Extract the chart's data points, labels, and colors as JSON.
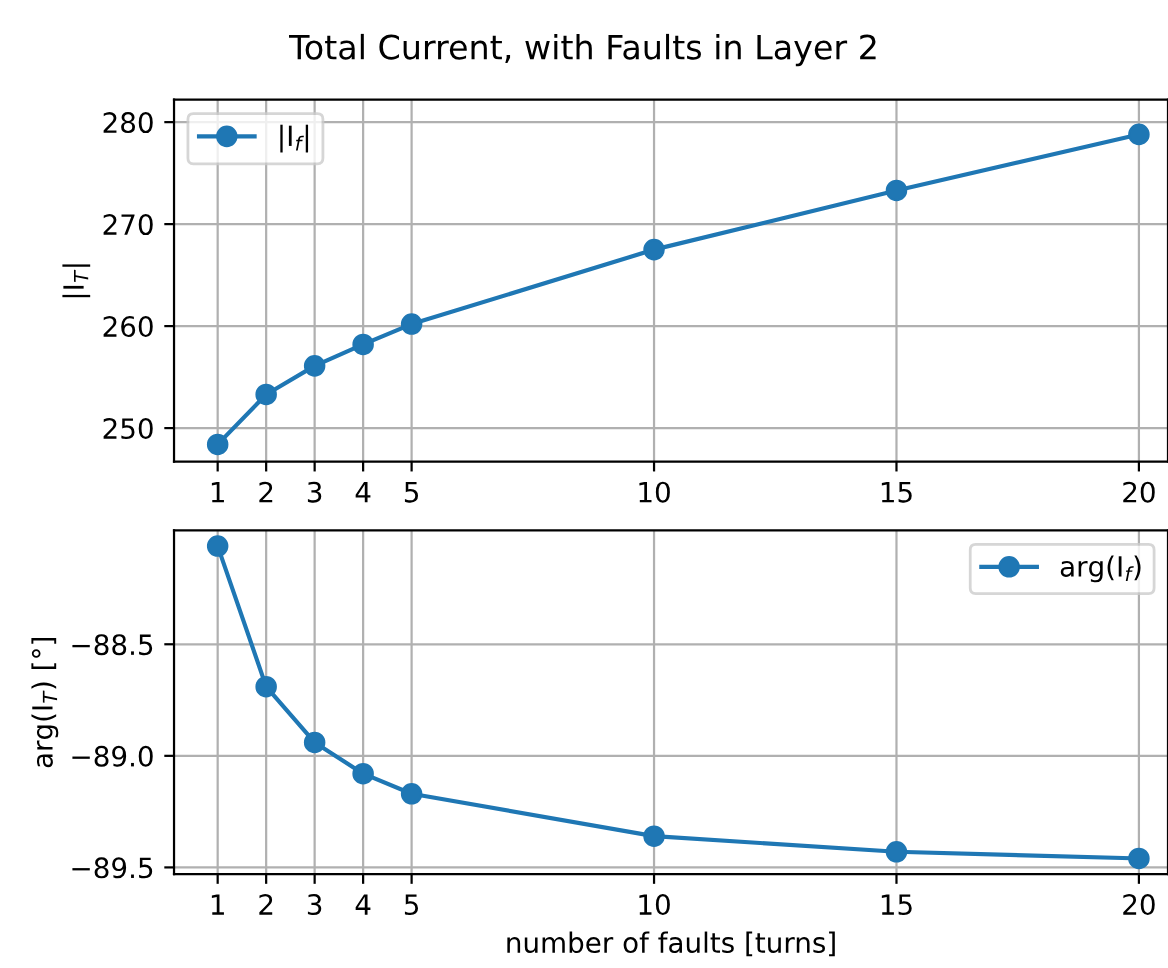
{
  "chart_data": [
    {
      "type": "line",
      "title": "Total Current, with Faults in Layer 2",
      "ylabel": "|I$_{T}$|",
      "x": [
        1,
        2,
        3,
        4,
        5,
        10,
        15,
        20
      ],
      "series": [
        {
          "name": "|I$_{f}$|",
          "color": "#1f77b4",
          "values": [
            248.4,
            253.3,
            256.1,
            258.2,
            260.2,
            267.5,
            273.3,
            278.8
          ]
        }
      ],
      "xlim": [
        0.1,
        20.6
      ],
      "xticks": [
        1,
        2,
        3,
        4,
        5,
        10,
        15,
        20
      ],
      "ylim": [
        246.7,
        282.2
      ],
      "yticks": [
        250,
        260,
        270,
        280
      ],
      "grid": true,
      "legend": "top left",
      "marker": "circle",
      "line_style": "solid"
    },
    {
      "type": "line",
      "xlabel": "number of faults [turns]",
      "ylabel": "arg(I$_{T}$) [°]",
      "x": [
        1,
        2,
        3,
        4,
        5,
        10,
        15,
        20
      ],
      "series": [
        {
          "name": "arg(I$_{f}$)",
          "color": "#1f77b4",
          "values": [
            -88.06,
            -88.69,
            -88.94,
            -89.08,
            -89.17,
            -89.36,
            -89.43,
            -89.46
          ]
        }
      ],
      "xlim": [
        0.1,
        20.6
      ],
      "xticks": [
        1,
        2,
        3,
        4,
        5,
        10,
        15,
        20
      ],
      "ylim": [
        -89.53,
        -87.99
      ],
      "yticks": [
        {
          "value": -88.5,
          "label": "−88.5"
        },
        {
          "value": -89.0,
          "label": "−89.0"
        },
        {
          "value": -89.5,
          "label": "−89.5"
        }
      ],
      "grid": true,
      "legend": "top right",
      "marker": "circle",
      "line_style": "solid"
    }
  ]
}
